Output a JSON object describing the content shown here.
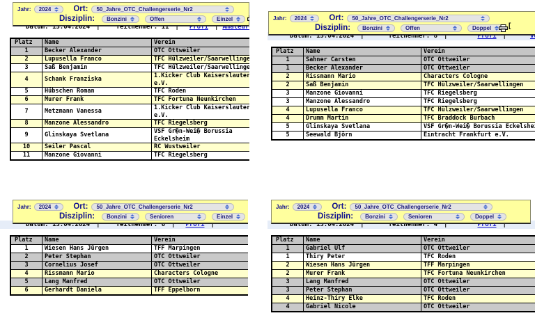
{
  "colors": {
    "form-yellow": "#ffff9e",
    "row-yellow": "#ffffcd",
    "row-gray": "#c9c9c9",
    "header-gray": "#c5c5c5",
    "label-navy": "#10108e",
    "link-blue": "#1a1acd",
    "pill-gray": "#e4e4e4",
    "info-blue": "#e6edf8",
    "stepper-blue": "#4d6fd0"
  },
  "panels": [
    {
      "form": {
        "jahr_label": "Jahr:",
        "jahr_value": "2024",
        "ort_label": "Ort:",
        "ort_value": "50_Jahre_OTC_Challengerserie_Nr2",
        "disziplin_label": "Disziplin:",
        "disziplin": [
          "Bonzini",
          "Offen",
          "Einzel"
        ],
        "printer_suffix": ""
      },
      "info": {
        "datum_label": "Datum:",
        "datum_value": "13.04.2024",
        "teilnehmer_label": "Teilnehmer:",
        "teilnehmer_value": "11",
        "links": [
          "Profi",
          "Amateure"
        ]
      },
      "table": {
        "headers": [
          "Platz",
          "Name",
          "Verein"
        ],
        "rows": [
          {
            "platz": "1",
            "name": "Becker Alexander",
            "verein": "OTC Ottweiler",
            "bg": "gray"
          },
          {
            "platz": "2",
            "name": "Lupusella Franco",
            "verein": "TFC Hülzweiler/Saarwellingen",
            "bg": "yellow"
          },
          {
            "platz": "3",
            "name": "Saß Benjamin",
            "verein": "TFC Hülzweiler/Saarwellingen",
            "bg": "white"
          },
          {
            "platz": "4",
            "name": "Schank Franziska",
            "verein": "1.Kicker Club Kaiserslautern e.V.",
            "bg": "yellow"
          },
          {
            "platz": "5",
            "name": "Hübschen Roman",
            "verein": "TFC Roden",
            "bg": "white"
          },
          {
            "platz": "6",
            "name": "Murer Frank",
            "verein": "TFC Fortuna Neunkirchen",
            "bg": "yellow"
          },
          {
            "platz": "7",
            "name": "Metzmann Vanessa",
            "verein": "1.Kicker Club Kaiserslautern e.V.",
            "bg": "white"
          },
          {
            "platz": "8",
            "name": "Manzone Alessandro",
            "verein": "TFC Riegelsberg",
            "bg": "yellow"
          },
          {
            "platz": "9",
            "name": "Glinskaya Svetlana",
            "verein": "VSF Gr�n-Wei� Borussia Eckelsheim",
            "bg": "white"
          },
          {
            "platz": "10",
            "name": "Seiler Pascal",
            "verein": "RC Wustweiler",
            "bg": "yellow"
          },
          {
            "platz": "11",
            "name": "Manzone Giovanni",
            "verein": "TFC Riegelsberg",
            "bg": "white"
          }
        ]
      }
    },
    {
      "form": {
        "jahr_label": "Jahr:",
        "jahr_value": "2024",
        "ort_label": "Ort:",
        "ort_value": "50_Jahre_OTC_Challengerserie_Nr2",
        "disziplin_label": "Disziplin:",
        "disziplin": [
          "Bonzini",
          "Offen",
          "Doppel"
        ],
        "printer_suffix": "["
      },
      "info": {
        "datum_label": "Datum:",
        "datum_value": "13.04.2024",
        "teilnehmer_label": "Teilnehmer:",
        "teilnehmer_value": "8",
        "links": [
          "Profi",
          "Vor"
        ]
      },
      "table": {
        "headers": [
          "Platz",
          "Name",
          "Verein"
        ],
        "rows": [
          {
            "platz": "1",
            "name": "Sahner Carsten",
            "verein": "OTC Ottweiler",
            "bg": "gray"
          },
          {
            "platz": "1",
            "name": "Becker Alexander",
            "verein": "OTC Ottweiler",
            "bg": "gray"
          },
          {
            "platz": "2",
            "name": "Rissmann Mario",
            "verein": "Characters Cologne",
            "bg": "yellow"
          },
          {
            "platz": "2",
            "name": "Saß Benjamin",
            "verein": "TFC Hülzweiler/Saarwellingen",
            "bg": "yellow"
          },
          {
            "platz": "3",
            "name": "Manzone Giovanni",
            "verein": "TFC Riegelsberg",
            "bg": "white"
          },
          {
            "platz": "3",
            "name": "Manzone Alessandro",
            "verein": "TFC Riegelsberg",
            "bg": "white"
          },
          {
            "platz": "4",
            "name": "Lupusella Franco",
            "verein": "TFC Hülzweiler/Saarwellingen",
            "bg": "yellow"
          },
          {
            "platz": "4",
            "name": "Drumm Martin",
            "verein": "TFC Braddock Burbach",
            "bg": "yellow"
          },
          {
            "platz": "5",
            "name": "Glinskaya Svetlana",
            "verein": "VSF Gr�n-Wei� Borussia Eckelsheim",
            "bg": "white"
          },
          {
            "platz": "5",
            "name": "Seewald Björn",
            "verein": "Eintracht Frankfurt e.V.",
            "bg": "white"
          }
        ]
      }
    },
    {
      "form": {
        "jahr_label": "Jahr:",
        "jahr_value": "2024",
        "ort_label": "Ort:",
        "ort_value": "50_Jahre_OTC_Challengerserie_Nr2",
        "disziplin_label": "Disziplin:",
        "disziplin": [
          "Bonzini",
          "Senioren",
          "Einzel"
        ],
        "printer_suffix": ""
      },
      "info": {
        "datum_label": "Datum:",
        "datum_value": "13.04.2024",
        "teilnehmer_label": "Teilnehmer:",
        "teilnehmer_value": "6",
        "links": [
          "Profi"
        ]
      },
      "table": {
        "headers": [
          "Platz",
          "Name",
          "Verein"
        ],
        "rows": [
          {
            "platz": "1",
            "name": "Wiesen Hans Jürgen",
            "verein": "TFF Marpingen",
            "bg": "white"
          },
          {
            "platz": "2",
            "name": "Peter Stephan",
            "verein": "OTC Ottweiler",
            "bg": "gray"
          },
          {
            "platz": "3",
            "name": "Cornelius Josef",
            "verein": "OTC Ottweiler",
            "bg": "gray"
          },
          {
            "platz": "4",
            "name": "Rissmann Mario",
            "verein": "Characters Cologne",
            "bg": "yellow"
          },
          {
            "platz": "5",
            "name": "Lang Manfred",
            "verein": "OTC Ottweiler",
            "bg": "gray"
          },
          {
            "platz": "6",
            "name": "Gerhardt Daniela",
            "verein": "TFF Eppelborn",
            "bg": "yellow"
          }
        ]
      }
    },
    {
      "form": {
        "jahr_label": "Jahr:",
        "jahr_value": "2024",
        "ort_label": "Ort:",
        "ort_value": "50_Jahre_OTC_Challengerserie_Nr2",
        "disziplin_label": "Disziplin:",
        "disziplin": [
          "Bonzini",
          "Senioren",
          "Doppel"
        ],
        "printer_suffix": ""
      },
      "info": {
        "datum_label": "Datum:",
        "datum_value": "13.04.2024",
        "teilnehmer_label": "Teilnehmer:",
        "teilnehmer_value": "4",
        "links": [
          "Profi"
        ]
      },
      "table": {
        "headers": [
          "Platz",
          "Name",
          "Verein"
        ],
        "rows": [
          {
            "platz": "1",
            "name": "Gabriel Ulf",
            "verein": "OTC Ottweiler",
            "bg": "gray"
          },
          {
            "platz": "1",
            "name": "Thiry Peter",
            "verein": "TFC Roden",
            "bg": "white"
          },
          {
            "platz": "2",
            "name": "Wiesen Hans Jürgen",
            "verein": "TFF Marpingen",
            "bg": "yellow"
          },
          {
            "platz": "2",
            "name": "Murer Frank",
            "verein": "TFC Fortuna Neunkirchen",
            "bg": "yellow"
          },
          {
            "platz": "3",
            "name": "Lang Manfred",
            "verein": "OTC Ottweiler",
            "bg": "gray"
          },
          {
            "platz": "3",
            "name": "Peter Stephan",
            "verein": "OTC Ottweiler",
            "bg": "gray"
          },
          {
            "platz": "4",
            "name": "Heinz-Thiry Elke",
            "verein": "TFC Roden",
            "bg": "yellow"
          },
          {
            "platz": "4",
            "name": "Gabriel Nicole",
            "verein": "OTC Ottweiler",
            "bg": "gray"
          }
        ]
      }
    }
  ]
}
